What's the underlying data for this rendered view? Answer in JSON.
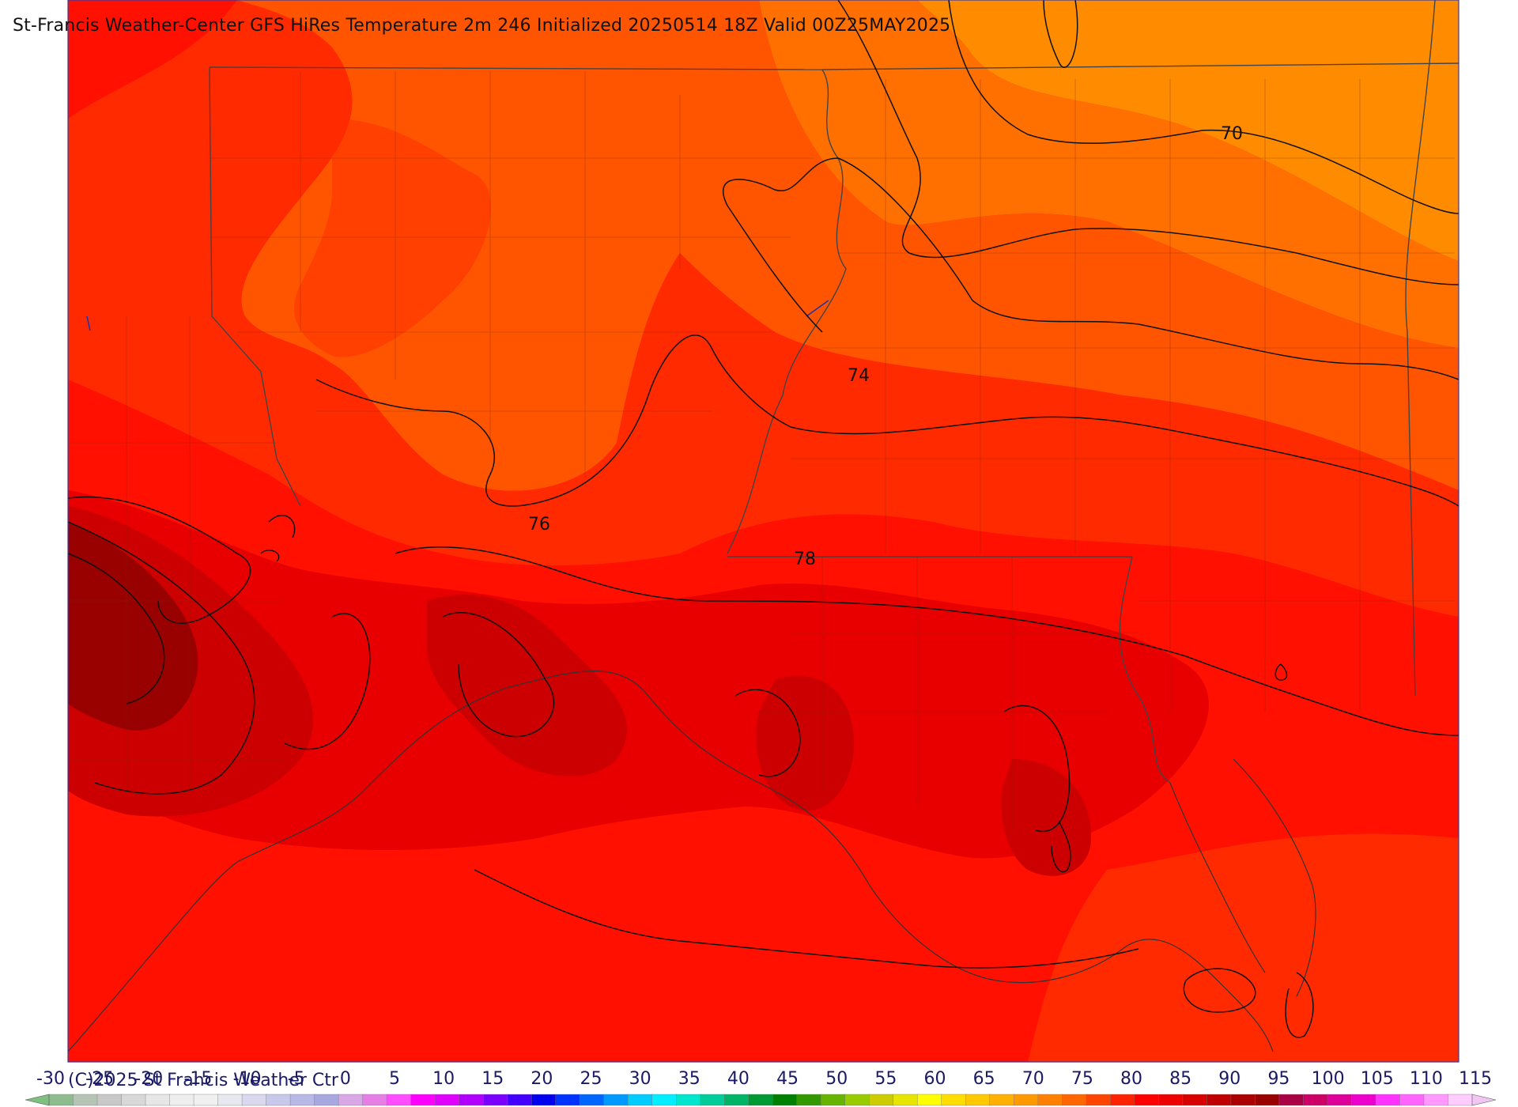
{
  "title": "St-Francis Weather-Center GFS HiRes Temperature 2m  246 Initialized 20250514 18Z Valid 00Z25MAY2025",
  "copyright": "(C)2025 St Francis Weather Ctr",
  "contour_labels": [
    "70",
    "74",
    "76",
    "78"
  ],
  "colorbar": {
    "ticks": [
      "-30",
      "-25",
      "-20",
      "-15",
      "-10",
      "-5",
      "0",
      "5",
      "10",
      "15",
      "20",
      "25",
      "30",
      "35",
      "40",
      "45",
      "50",
      "55",
      "60",
      "65",
      "70",
      "75",
      "80",
      "85",
      "90",
      "95",
      "100",
      "105",
      "110",
      "115"
    ],
    "colors": [
      "#8fbc8f",
      "#b5c4b5",
      "#c8c8c8",
      "#d8d8d8",
      "#e6e6e6",
      "#eeeeee",
      "#f0f0f0",
      "#e8e8f0",
      "#d8d8ee",
      "#c8c8ea",
      "#b8b8e6",
      "#a8a8e0",
      "#d9a6e6",
      "#e67ee6",
      "#ff4dff",
      "#ff00ff",
      "#e000ff",
      "#b000ff",
      "#7a00ff",
      "#4400ff",
      "#0000ee",
      "#0033ff",
      "#0066ff",
      "#0099ff",
      "#00ccff",
      "#00eeff",
      "#00e6cc",
      "#00cc99",
      "#00b366",
      "#009933",
      "#008000",
      "#339900",
      "#66b300",
      "#99cc00",
      "#cccc00",
      "#e6e600",
      "#ffff00",
      "#ffdd00",
      "#ffc800",
      "#ffb000",
      "#ff9900",
      "#ff8000",
      "#ff6600",
      "#ff4400",
      "#ff2200",
      "#ff0000",
      "#ee0000",
      "#d80000",
      "#c00000",
      "#aa0000",
      "#990000",
      "#aa0044",
      "#cc0066",
      "#dd0099",
      "#ee00cc",
      "#ff33ff",
      "#ff66ff",
      "#ff99ff",
      "#ffccff"
    ],
    "ends": {
      "left": "#7fbf7f",
      "right": "#f2c6f2"
    }
  },
  "map_colors": {
    "t68": "#ff8c00",
    "t70": "#ff7000",
    "t72": "#ff5500",
    "t74": "#ff4000",
    "t76": "#ff2a00",
    "t78": "#ff1000",
    "t80": "#e80000",
    "t82": "#cc0000",
    "t84": "#b00000",
    "t86": "#990000"
  }
}
